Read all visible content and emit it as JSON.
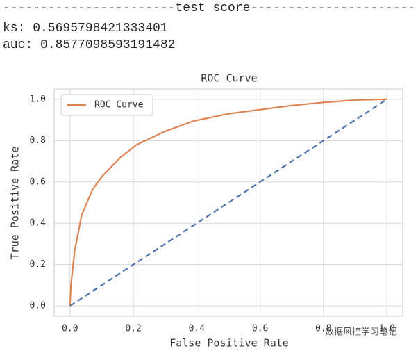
{
  "header_lines": [
    "-----------------------test score----------------------",
    "ks: 0.5695798421333401",
    "auc: 0.8577098593191482"
  ],
  "watermark": "数据风控学习笔记",
  "chart_data": {
    "type": "line",
    "title": "ROC Curve",
    "xlabel": "False Positive Rate",
    "ylabel": "True Positive Rate",
    "series": [
      {
        "name": "ROC Curve",
        "color": "#dd8452",
        "x": [
          0,
          0.003,
          0.015,
          0.037,
          0.07,
          0.1,
          0.16,
          0.21,
          0.3,
          0.39,
          0.5,
          0.6,
          0.7,
          0.8,
          0.91,
          1
        ],
        "values": [
          0,
          0.1,
          0.27,
          0.44,
          0.56,
          0.625,
          0.72,
          0.78,
          0.845,
          0.895,
          0.93,
          0.95,
          0.97,
          0.985,
          0.997,
          1
        ]
      },
      {
        "color": "#4c72b0",
        "dashed": true,
        "x": [
          0,
          1
        ],
        "values": [
          0,
          1
        ]
      }
    ],
    "xlim": [
      -0.05,
      1.05
    ],
    "ylim": [
      -0.05,
      1.05
    ],
    "xticks": [
      {
        "value": 0,
        "label": "0.0"
      },
      0.2,
      0.4,
      0.6,
      0.8,
      {
        "value": 1,
        "label": "1.0"
      }
    ],
    "yticks": [
      {
        "value": 0,
        "label": "0.0"
      },
      0.2,
      0.4,
      0.6,
      0.8,
      {
        "value": 1,
        "label": "1.0"
      }
    ],
    "grid": true,
    "legend": "upper left"
  }
}
